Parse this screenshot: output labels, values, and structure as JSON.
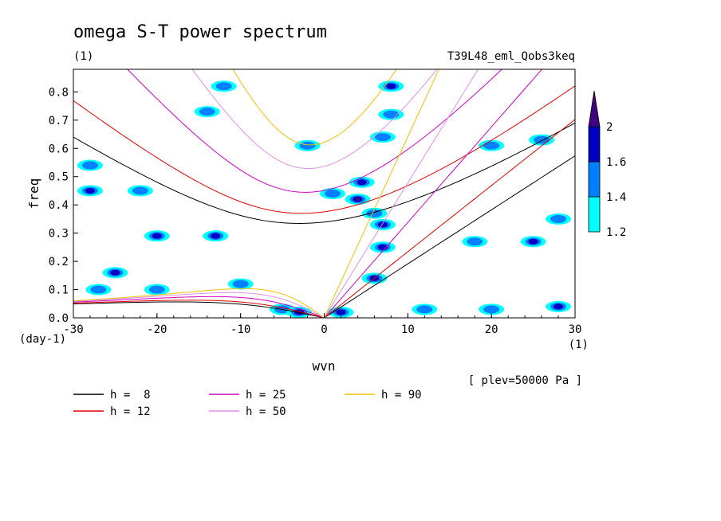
{
  "chart_data": {
    "type": "contour",
    "title": "omega S-T power spectrum",
    "units_label": "(1)",
    "experiment": "T39L48_eml_Qobs3keq",
    "xlabel": "wvn",
    "ylabel": "freq",
    "y_units": "(day-1)",
    "x_units": "(1)",
    "xlim": [
      -30,
      30
    ],
    "ylim": [
      0,
      0.88
    ],
    "xticks": [
      -30,
      -20,
      -10,
      0,
      10,
      20,
      30
    ],
    "yticks": [
      0.0,
      0.1,
      0.2,
      0.3,
      0.4,
      0.5,
      0.6,
      0.7,
      0.8
    ],
    "level_note": "[ plev=50000 Pa ]",
    "colorbar": {
      "levels": [
        1.2,
        1.4,
        1.6,
        2
      ],
      "colors": [
        "#00ffff",
        "#0080ff",
        "#0000c0",
        "#400080"
      ]
    },
    "dispersion_curves": [
      {
        "label": "h =  8",
        "h": 8,
        "color": "#000000"
      },
      {
        "label": "h = 12",
        "h": 12,
        "color": "#e00000"
      },
      {
        "label": "h = 25",
        "h": 25,
        "color": "#d000c0"
      },
      {
        "label": "h = 50",
        "h": 50,
        "color": "#e090e8"
      },
      {
        "label": "h = 90",
        "h": 90,
        "color": "#f0c000"
      }
    ],
    "contour_regions": [
      {
        "wvn": 4.5,
        "freq": 0.48,
        "level": 1.6
      },
      {
        "wvn": 4.0,
        "freq": 0.42,
        "level": 2
      },
      {
        "wvn": 6.0,
        "freq": 0.37,
        "level": 1.4
      },
      {
        "wvn": 7.0,
        "freq": 0.33,
        "level": 1.6
      },
      {
        "wvn": 7.0,
        "freq": 0.25,
        "level": 1.6
      },
      {
        "wvn": 6.0,
        "freq": 0.14,
        "level": 1.6
      },
      {
        "wvn": 8.0,
        "freq": 0.72,
        "level": 1.4
      },
      {
        "wvn": 8.0,
        "freq": 0.82,
        "level": 1.6
      },
      {
        "wvn": 7.0,
        "freq": 0.64,
        "level": 1.4
      },
      {
        "wvn": 25.0,
        "freq": 0.27,
        "level": 1.6
      },
      {
        "wvn": 18.0,
        "freq": 0.27,
        "level": 1.4
      },
      {
        "wvn": -28.0,
        "freq": 0.45,
        "level": 1.6
      },
      {
        "wvn": -28.0,
        "freq": 0.54,
        "level": 1.4
      },
      {
        "wvn": -25.0,
        "freq": 0.16,
        "level": 1.6
      },
      {
        "wvn": -22.0,
        "freq": 0.45,
        "level": 1.4
      },
      {
        "wvn": -20.0,
        "freq": 0.29,
        "level": 1.6
      },
      {
        "wvn": -14.0,
        "freq": 0.73,
        "level": 1.4
      },
      {
        "wvn": -13.0,
        "freq": 0.29,
        "level": 1.6
      },
      {
        "wvn": -27.0,
        "freq": 0.1,
        "level": 1.4
      },
      {
        "wvn": -20.0,
        "freq": 0.1,
        "level": 1.4
      },
      {
        "wvn": -10.0,
        "freq": 0.12,
        "level": 1.4
      },
      {
        "wvn": -12.0,
        "freq": 0.82,
        "level": 1.4
      },
      {
        "wvn": -5.0,
        "freq": 0.03,
        "level": 1.4
      },
      {
        "wvn": -3.0,
        "freq": 0.02,
        "level": 1.6
      },
      {
        "wvn": 2.0,
        "freq": 0.02,
        "level": 1.6
      },
      {
        "wvn": 12.0,
        "freq": 0.03,
        "level": 1.4
      },
      {
        "wvn": 20.0,
        "freq": 0.03,
        "level": 1.4
      },
      {
        "wvn": 28.0,
        "freq": 0.04,
        "level": 1.6
      },
      {
        "wvn": 1.0,
        "freq": 0.44,
        "level": 1.4
      },
      {
        "wvn": -2.0,
        "freq": 0.61,
        "level": 1.4
      },
      {
        "wvn": 28.0,
        "freq": 0.35,
        "level": 1.4
      },
      {
        "wvn": 26.0,
        "freq": 0.63,
        "level": 1.4
      },
      {
        "wvn": 20.0,
        "freq": 0.61,
        "level": 1.4
      }
    ]
  }
}
